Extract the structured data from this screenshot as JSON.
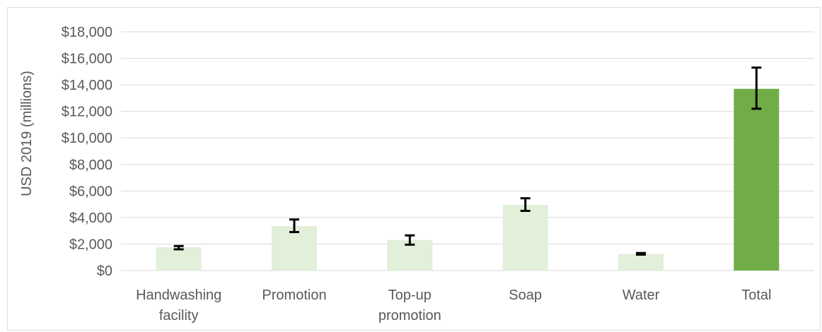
{
  "chart_data": {
    "type": "bar",
    "title": "",
    "xlabel": "",
    "ylabel": "USD 2019 (millions)",
    "ylim": [
      0,
      18000
    ],
    "yticks": [
      0,
      2000,
      4000,
      6000,
      8000,
      10000,
      12000,
      14000,
      16000,
      18000
    ],
    "ytick_labels": [
      "$0",
      "$2,000",
      "$4,000",
      "$6,000",
      "$8,000",
      "$10,000",
      "$12,000",
      "$14,000",
      "$16,000",
      "$18,000"
    ],
    "grid": true,
    "categories": [
      [
        "Handwashing",
        "facility"
      ],
      [
        "Promotion"
      ],
      [
        "Top-up",
        "promotion"
      ],
      [
        "Soap"
      ],
      [
        "Water"
      ],
      [
        "Total"
      ]
    ],
    "values": [
      1750,
      3350,
      2300,
      4950,
      1250,
      13700
    ],
    "error_low": [
      1600,
      2900,
      1950,
      4500,
      1200,
      12200
    ],
    "error_high": [
      1850,
      3850,
      2650,
      5450,
      1320,
      15300
    ],
    "colors": [
      "#e2efd9",
      "#e2efd9",
      "#e2efd9",
      "#e2efd9",
      "#e2efd9",
      "#70ad47"
    ],
    "gridline_color": "#d9d9d9",
    "errorbar_color": "#000000"
  }
}
